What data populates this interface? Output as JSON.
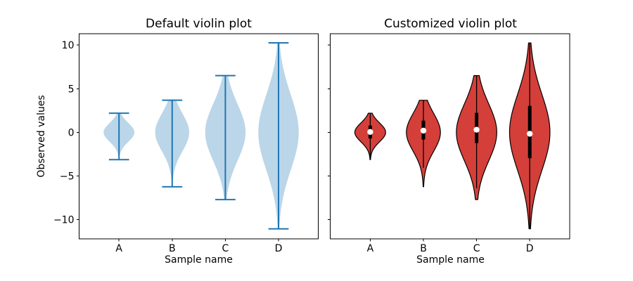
{
  "chart_data": [
    {
      "type": "violin",
      "title": "Default violin plot",
      "xlabel": "Sample name",
      "ylabel": "Observed values",
      "categories": [
        "A",
        "B",
        "C",
        "D"
      ],
      "x_positions": [
        1,
        2,
        3,
        4
      ],
      "xlim": [
        0.25,
        4.75
      ],
      "ylim": [
        -12.2,
        11.3
      ],
      "yticks": [
        10,
        5,
        0,
        -5,
        -10
      ],
      "ytick_labels": [
        "10",
        "5",
        "0",
        "−5",
        "−10"
      ],
      "grid": false,
      "legend": null,
      "style": {
        "body_fill": "#1f77b4",
        "body_alpha": 0.3,
        "line_color": "#1f77b4",
        "cap_halfwidth": 0.19
      },
      "violins": [
        {
          "label": "A",
          "position": 1,
          "min": -3.13,
          "max": 2.2,
          "sigma": 1,
          "max_halfwidth": 0.29
        },
        {
          "label": "B",
          "position": 2,
          "min": -6.23,
          "max": 3.68,
          "sigma": 2,
          "max_halfwidth": 0.32
        },
        {
          "label": "C",
          "position": 3,
          "min": -7.7,
          "max": 6.5,
          "sigma": 3,
          "max_halfwidth": 0.38
        },
        {
          "label": "D",
          "position": 4,
          "min": -11.05,
          "max": 10.25,
          "sigma": 4,
          "max_halfwidth": 0.38
        }
      ]
    },
    {
      "type": "violin",
      "title": "Customized violin plot",
      "xlabel": "Sample name",
      "ylabel": "",
      "categories": [
        "A",
        "B",
        "C",
        "D"
      ],
      "x_positions": [
        1,
        2,
        3,
        4
      ],
      "xlim": [
        0.25,
        4.75
      ],
      "ylim": [
        -12.2,
        11.3
      ],
      "yticks": [
        10,
        5,
        0,
        -5,
        -10
      ],
      "ytick_labels": [],
      "grid": false,
      "legend": null,
      "style": {
        "body_fill": "#d43f3a",
        "body_alpha": 1,
        "body_edge": "#000000",
        "whisker_color": "#000000",
        "box_color": "#000000",
        "median_dot_color": "#ffffff"
      },
      "violins": [
        {
          "label": "A",
          "position": 1,
          "min": -3.13,
          "max": 2.2,
          "q1": -0.7,
          "median": 0.05,
          "q3": 0.78,
          "whisker_low": -2.92,
          "whisker_high": 2.2,
          "sigma": 1,
          "max_halfwidth": 0.29
        },
        {
          "label": "B",
          "position": 2,
          "min": -6.23,
          "max": 3.68,
          "q1": -0.82,
          "median": 0.2,
          "q3": 1.34,
          "whisker_low": -4.06,
          "whisker_high": 3.68,
          "sigma": 2,
          "max_halfwidth": 0.32
        },
        {
          "label": "C",
          "position": 3,
          "min": -7.7,
          "max": 6.5,
          "q1": -1.22,
          "median": 0.3,
          "q3": 2.24,
          "whisker_low": -6.41,
          "whisker_high": 6.5,
          "sigma": 3,
          "max_halfwidth": 0.38
        },
        {
          "label": "D",
          "position": 4,
          "min": -11.05,
          "max": 10.25,
          "q1": -2.96,
          "median": -0.16,
          "q3": 3.04,
          "whisker_low": -11.05,
          "whisker_high": 10.25,
          "sigma": 4,
          "max_halfwidth": 0.38
        }
      ]
    }
  ]
}
